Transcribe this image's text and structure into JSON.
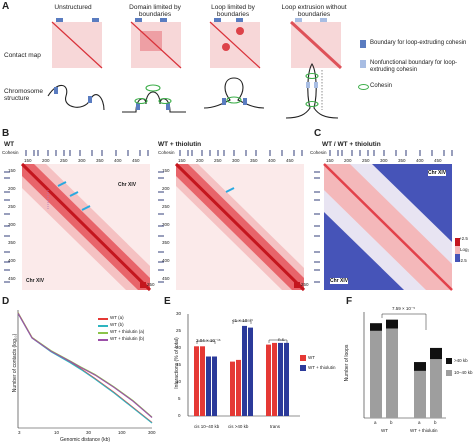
{
  "panel_a": {
    "letter": "A",
    "row_labels": [
      "Contact map",
      "Chromosome structure"
    ],
    "columns": [
      "Unstructured",
      "Domain limited by boundaries",
      "Loop limited by boundaries",
      "Loop extrusion without boundaries"
    ],
    "legend": {
      "boundary": "Boundary for loop-extruding cohesin",
      "nonfunctional": "Nonfunctional boundary for loop-extruding cohesin",
      "cohesin": "Cohesin"
    },
    "colors": {
      "map_bg": "#f7d7d8",
      "diag": "#d9323a",
      "boundary": "#5a7cc0",
      "nonfunctional": "#a8bde3",
      "cohesin": "#3cae49"
    }
  },
  "panel_b": {
    "letter": "B",
    "maps": [
      {
        "title": "WT",
        "cohesin_label": "Cohesin",
        "chr_label_top": "Chr XIV",
        "chr_label_bottom": "Chr XIV",
        "scale_value": "250"
      },
      {
        "title": "WT + thiolutin",
        "cohesin_label": "Cohesin",
        "scale_value": "250"
      }
    ],
    "x_ticks": [
      "150",
      "200",
      "250",
      "300",
      "350",
      "400",
      "450"
    ],
    "y_ticks": [
      "150",
      "200",
      "250",
      "300",
      "350",
      "400",
      "450"
    ]
  },
  "panel_c": {
    "letter": "C",
    "title": "WT / WT + thiolutin",
    "cohesin_label": "Cohesin",
    "chr_label_top": "Chr XIV",
    "chr_label_bottom": "Chr XIV",
    "scale_top": "+2.5",
    "scale_mid": "Log₂",
    "scale_bottom": "-2.5",
    "x_ticks": [
      "150",
      "200",
      "250",
      "300",
      "350",
      "400",
      "450"
    ]
  },
  "panel_d": {
    "letter": "D",
    "ylabel": "Number of contacts (log₁₀)",
    "xlabel": "Genomic distance (kb)",
    "x_ticks": [
      "3",
      "10",
      "30",
      "100",
      "300"
    ],
    "legend": [
      "WT (a)",
      "WT (b)",
      "WT + thiolutin (a)",
      "WT + thiolutin (b)"
    ],
    "colors": [
      "#e53935",
      "#2eb5c0",
      "#8bc34a",
      "#9c4fa8"
    ]
  },
  "panel_e": {
    "letter": "E",
    "ylabel": "Interactions (% of total)",
    "y_ticks": [
      "0",
      "5",
      "10",
      "15",
      "20",
      "25",
      "30"
    ],
    "categories": [
      "cis 10–40 kb",
      "cis >40 kb",
      "trans"
    ],
    "pvalues": [
      "2.04 × 10⁻¹⁶",
      "<1 × 10⁻¹⁶",
      "n.s."
    ],
    "legend": [
      "WT",
      "WT + thiolutin"
    ],
    "colors": [
      "#e53935",
      "#2b3a9a"
    ]
  },
  "panel_f": {
    "letter": "F",
    "ylabel": "Number of loops",
    "y_ticks": [
      "0",
      "20",
      "40",
      "60",
      "80",
      "100",
      "120",
      "140",
      "160",
      "180"
    ],
    "pvalue": "7.59 × 10⁻⁵",
    "groups": [
      "WT",
      "WT + thiolutin"
    ],
    "replicates": [
      "a",
      "b",
      "a",
      "b"
    ],
    "legend": [
      ">40 kb",
      "10–40 kb"
    ],
    "colors": [
      "#111111",
      "#9e9e9e"
    ]
  },
  "chart_data": [
    {
      "type": "line",
      "panel": "D",
      "xlabel": "Genomic distance (kb)",
      "ylabel": "Number of contacts (log₁₀)",
      "x_scale": "log",
      "x": [
        3,
        5,
        10,
        20,
        30,
        50,
        100,
        200,
        400
      ],
      "series": [
        {
          "name": "WT (a)",
          "values": [
            0.0,
            -0.9,
            -1.4,
            -1.8,
            -2.05,
            -2.4,
            -2.9,
            -3.45,
            -4.0
          ]
        },
        {
          "name": "WT (b)",
          "values": [
            0.0,
            -0.9,
            -1.4,
            -1.8,
            -2.05,
            -2.4,
            -2.9,
            -3.45,
            -4.0
          ]
        },
        {
          "name": "WT + thiolutin (a)",
          "values": [
            0.0,
            -0.9,
            -1.38,
            -1.75,
            -1.98,
            -2.25,
            -2.7,
            -3.2,
            -3.8
          ]
        },
        {
          "name": "WT + thiolutin (b)",
          "values": [
            0.0,
            -0.9,
            -1.38,
            -1.75,
            -1.98,
            -2.25,
            -2.7,
            -3.2,
            -3.8
          ]
        }
      ]
    },
    {
      "type": "bar",
      "panel": "E",
      "categories": [
        "cis 10–40 kb",
        "cis >40 kb",
        "trans"
      ],
      "ylabel": "Interactions (% of total)",
      "ylim": [
        0,
        30
      ],
      "series": [
        {
          "name": "WT",
          "values": [
            [
              20.5,
              20.5
            ],
            [
              16,
              16.5
            ],
            [
              21,
              21.5
            ]
          ]
        },
        {
          "name": "WT + thiolutin",
          "values": [
            [
              17.5,
              17.5
            ],
            [
              26.5,
              26
            ],
            [
              21.5,
              21.5
            ]
          ]
        }
      ]
    },
    {
      "type": "bar",
      "panel": "F",
      "categories": [
        "WT a",
        "WT b",
        "WT + thiolutin a",
        "WT + thiolutin b"
      ],
      "ylabel": "Number of loops",
      "ylim": [
        0,
        180
      ],
      "stacked": true,
      "series": [
        {
          "name": "10–40 kb",
          "values": [
            148,
            152,
            80,
            100
          ]
        },
        {
          "name": ">40 kb",
          "values": [
            13,
            15,
            15,
            19
          ]
        }
      ]
    }
  ]
}
